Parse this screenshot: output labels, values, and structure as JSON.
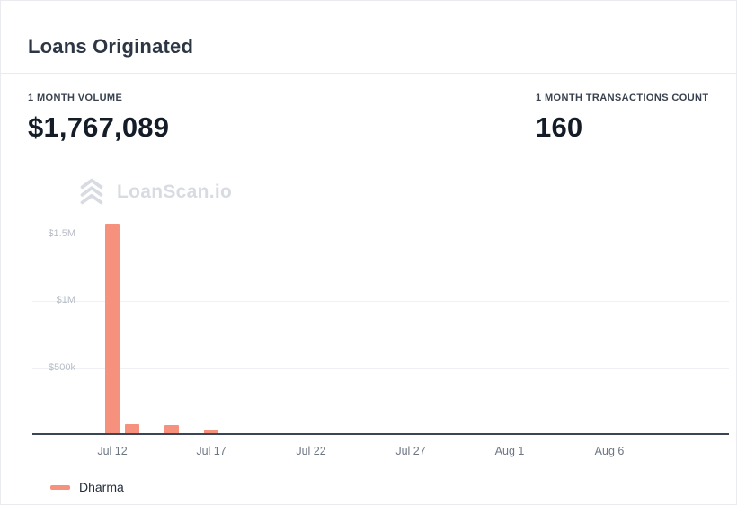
{
  "header": {
    "title": "Loans Originated"
  },
  "stats": {
    "volume": {
      "label": "1 MONTH VOLUME",
      "value": "$1,767,089"
    },
    "transactions": {
      "label": "1 MONTH TRANSACTIONS COUNT",
      "value": "160"
    }
  },
  "watermark": {
    "text": "LoanScan.io"
  },
  "colors": {
    "bar": "#f5917c",
    "axis_line": "#3a4656",
    "gridline": "#eef0f3",
    "y_label": "#b7bdc7",
    "x_label": "#6d7683",
    "watermark": "#d8dce2"
  },
  "chart_data": {
    "type": "bar",
    "title": "Loans Originated",
    "series": [
      {
        "name": "Dharma",
        "color": "#f5917c",
        "points": [
          {
            "date": "Jul 12",
            "day": 4,
            "value": 1580000
          },
          {
            "date": "Jul 13",
            "day": 5,
            "value": 65000
          },
          {
            "date": "Jul 15",
            "day": 7,
            "value": 60000
          },
          {
            "date": "Jul 17",
            "day": 9,
            "value": 25000
          }
        ]
      }
    ],
    "x_ticks": [
      {
        "label": "Jul 12",
        "day": 4
      },
      {
        "label": "Jul 17",
        "day": 9
      },
      {
        "label": "Jul 22",
        "day": 14
      },
      {
        "label": "Jul 27",
        "day": 19
      },
      {
        "label": "Aug 1",
        "day": 24
      },
      {
        "label": "Aug 6",
        "day": 29
      }
    ],
    "y_ticks": [
      {
        "label": "$500k",
        "value": 500000
      },
      {
        "label": "$1M",
        "value": 1000000
      },
      {
        "label": "$1.5M",
        "value": 1500000
      }
    ],
    "ylim": [
      0,
      1600000
    ],
    "x_days_span": 35,
    "grid": true,
    "legend_position": "bottom-left"
  }
}
